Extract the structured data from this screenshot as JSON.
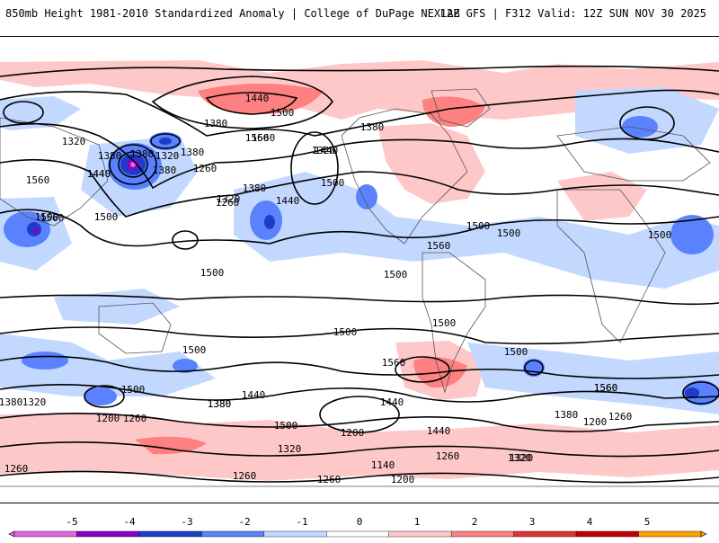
{
  "header": {
    "title": "850mb Height 1981-2010 Standardized Anomaly | College of DuPage NEXLAB",
    "run_info": "12Z GFS | F312 Valid: 12Z SUN NOV 30 2025"
  },
  "contour_labels": [
    "1440",
    "1500",
    "1560",
    "1380",
    "1320",
    "1380",
    "1440",
    "1320",
    "1380",
    "1320",
    "1380",
    "1260",
    "1260",
    "1440",
    "1380",
    "1320",
    "1560",
    "1560",
    "1500",
    "1500",
    "1380",
    "1380",
    "1440",
    "1440",
    "1560",
    "1500",
    "1500",
    "1500",
    "1560",
    "1500",
    "1500",
    "1500",
    "1500",
    "1500",
    "1500",
    "1500",
    "1560",
    "1560",
    "1440",
    "1380",
    "1320",
    "1200",
    "1260",
    "1380",
    "1440",
    "1500",
    "1320",
    "1200",
    "1140",
    "1200",
    "1260",
    "1260",
    "1380",
    "1260",
    "1200",
    "1320",
    "1380",
    "1320",
    "1440",
    "1260",
    "1560",
    "1500",
    "1260",
    "1320",
    "1260",
    "1380",
    "1260",
    "1320"
  ],
  "colorbar": {
    "ticks": [
      "-5",
      "-4",
      "-3",
      "-2",
      "-1",
      "0",
      "1",
      "2",
      "3",
      "4",
      "5"
    ],
    "colors": {
      "neg5": "#e066e0",
      "neg4": "#8c00c8",
      "neg3": "#1e3cc8",
      "neg2": "#5a82ff",
      "neg1": "#c2d8ff",
      "zero": "#ffffff",
      "pos1": "#ffc8c8",
      "pos2": "#ff8080",
      "pos3": "#e03232",
      "pos4": "#c00000",
      "pos5": "#ffa000"
    }
  },
  "map_colors": {
    "land_line": "#555555",
    "contour": "#000000"
  }
}
